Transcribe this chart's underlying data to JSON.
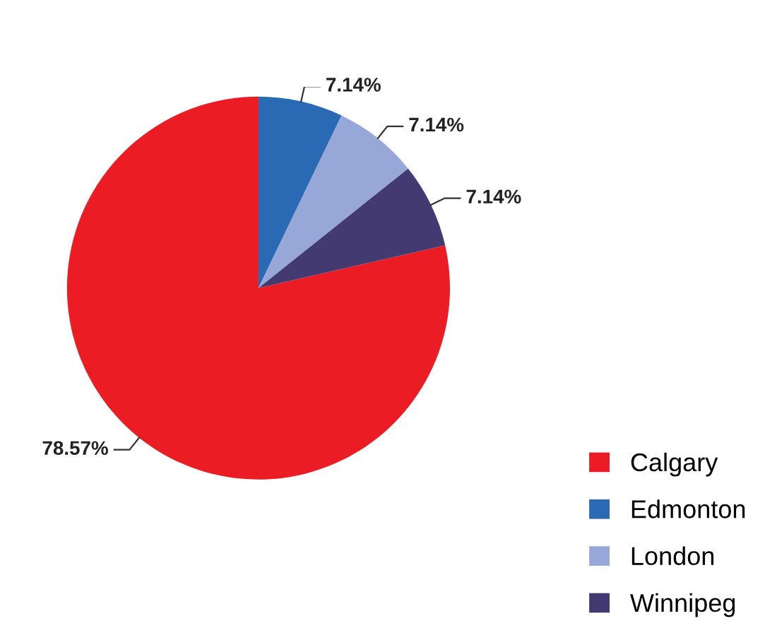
{
  "chart_data": {
    "type": "pie",
    "categories": [
      "Calgary",
      "Edmonton",
      "London",
      "Winnipeg"
    ],
    "values": [
      78.57,
      7.14,
      7.14,
      7.14
    ],
    "colors": [
      "#ec1c24",
      "#2a6ab4",
      "#97a8d8",
      "#433a72"
    ],
    "value_labels": [
      "78.57%",
      "7.14%",
      "7.14%",
      "7.14%"
    ],
    "legend": "bottom right"
  }
}
